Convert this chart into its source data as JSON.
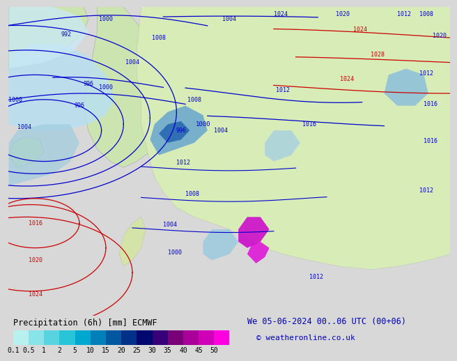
{
  "title_left": "Precipitation (6h) [mm] ECMWF",
  "title_right": "We 05-06-2024 00..06 UTC (00+06)",
  "credit": "© weatheronline.co.uk",
  "colorbar_ticks": [
    "0.1",
    "0.5",
    "1",
    "2",
    "5",
    "10",
    "15",
    "20",
    "25",
    "30",
    "35",
    "40",
    "45",
    "50"
  ],
  "colorbar_colors": [
    "#b8f0f0",
    "#88e4e8",
    "#58d4e0",
    "#28c4d8",
    "#00a8d0",
    "#0080b8",
    "#0058a0",
    "#003088",
    "#000870",
    "#380078",
    "#780078",
    "#a80098",
    "#d000b8",
    "#ff00e0"
  ],
  "map_bg": "#f0f0f0",
  "land_color_w": "#d4e8c0",
  "land_color_e": "#d8ecb8",
  "ocean_color": "#dce8f0",
  "prec_light": "#a8dce8",
  "prec_mid": "#60b0d8",
  "prec_dark": "#2068b8",
  "prec_purple": "#9000b0",
  "prec_magenta": "#e000d0",
  "isobar_blue": "#0000cc",
  "isobar_red": "#cc0000",
  "title_fontsize": 8.5,
  "credit_fontsize": 8,
  "tick_fontsize": 7,
  "label_fontsize": 6
}
